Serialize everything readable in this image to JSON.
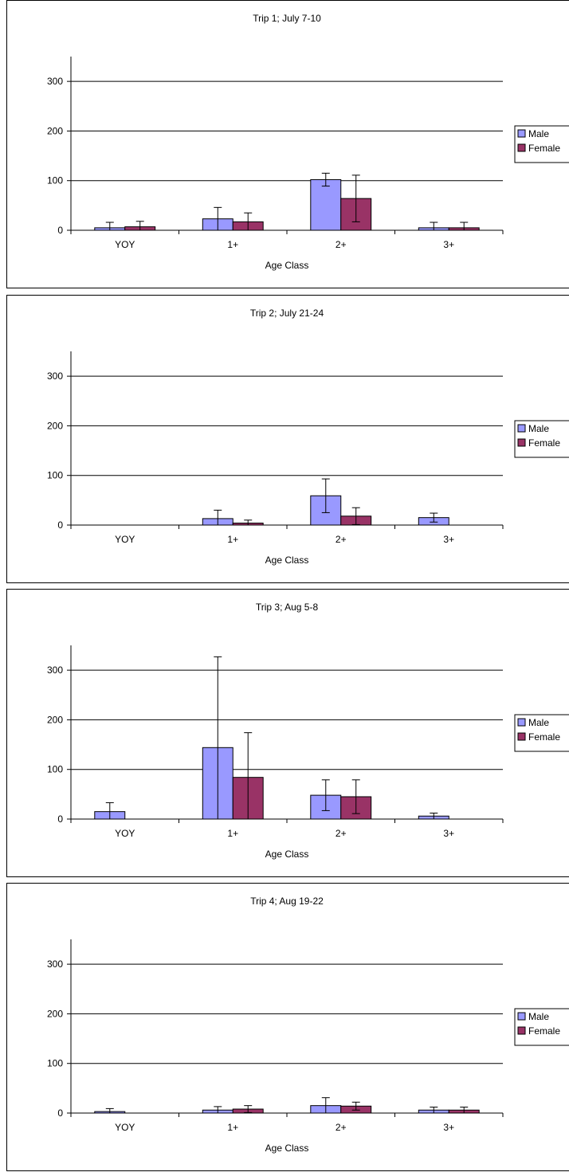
{
  "colors": {
    "male": "#9999ff",
    "female": "#993366",
    "grid": "#000000",
    "background": "#ffffff"
  },
  "chart_data": [
    {
      "type": "bar",
      "title": "Trip 1; July 7-10",
      "xlabel": "Age Class",
      "ylabel": "",
      "ylim": [
        0,
        350
      ],
      "yticks": [
        "0",
        "100",
        "200",
        "300"
      ],
      "grid": true,
      "legend_placement": "right",
      "categories": [
        "YOY",
        "1+",
        "2+",
        "3+"
      ],
      "series": [
        {
          "name": "Male",
          "values": [
            5,
            23,
            102,
            5
          ],
          "errors": [
            11,
            23,
            13,
            11
          ]
        },
        {
          "name": "Female",
          "values": [
            7,
            17,
            64,
            5
          ],
          "errors": [
            11,
            18,
            47,
            11
          ]
        }
      ]
    },
    {
      "type": "bar",
      "title": "Trip 2; July 21-24",
      "xlabel": "Age Class",
      "ylabel": "",
      "ylim": [
        0,
        350
      ],
      "yticks": [
        "0",
        "100",
        "200",
        "300"
      ],
      "grid": true,
      "legend_placement": "right",
      "categories": [
        "YOY",
        "1+",
        "2+",
        "3+"
      ],
      "series": [
        {
          "name": "Male",
          "values": [
            0,
            13,
            59,
            15
          ],
          "errors": [
            0,
            17,
            34,
            9
          ]
        },
        {
          "name": "Female",
          "values": [
            0,
            4,
            18,
            0
          ],
          "errors": [
            0,
            6,
            17,
            0
          ]
        }
      ]
    },
    {
      "type": "bar",
      "title": "Trip 3; Aug 5-8",
      "xlabel": "Age Class",
      "ylabel": "",
      "ylim": [
        0,
        350
      ],
      "yticks": [
        "0",
        "100",
        "200",
        "300"
      ],
      "grid": true,
      "legend_placement": "right",
      "categories": [
        "YOY",
        "1+",
        "2+",
        "3+"
      ],
      "series": [
        {
          "name": "Male",
          "values": [
            15,
            144,
            48,
            6
          ],
          "errors": [
            18,
            183,
            31,
            6
          ]
        },
        {
          "name": "Female",
          "values": [
            0,
            84,
            45,
            0
          ],
          "errors": [
            0,
            90,
            34,
            0
          ]
        }
      ]
    },
    {
      "type": "bar",
      "title": "Trip 4; Aug 19-22",
      "xlabel": "Age Class",
      "ylabel": "",
      "ylim": [
        0,
        350
      ],
      "yticks": [
        "0",
        "100",
        "200",
        "300"
      ],
      "grid": true,
      "legend_placement": "right",
      "categories": [
        "YOY",
        "1+",
        "2+",
        "3+"
      ],
      "series": [
        {
          "name": "Male",
          "values": [
            3,
            6,
            15,
            6
          ],
          "errors": [
            6,
            7,
            16,
            6
          ]
        },
        {
          "name": "Female",
          "values": [
            0,
            8,
            14,
            6
          ],
          "errors": [
            0,
            7,
            8,
            6
          ]
        }
      ]
    }
  ]
}
